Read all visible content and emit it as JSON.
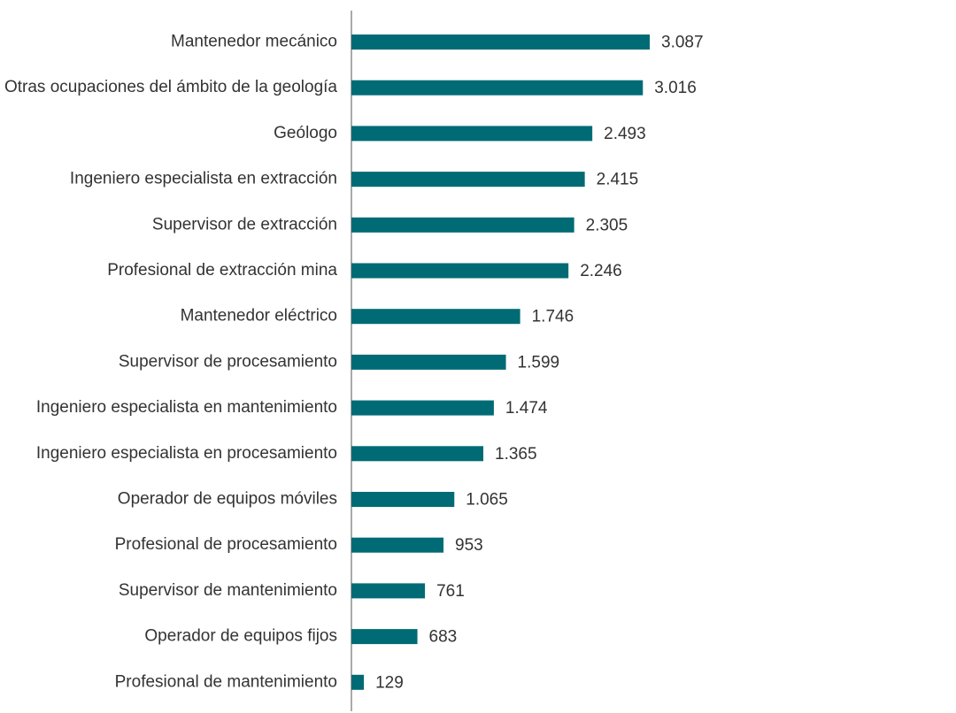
{
  "chart_data": {
    "type": "bar",
    "orientation": "horizontal",
    "categories": [
      "Mantenedor mecánico",
      "Otras ocupaciones del ámbito de la geología",
      "Geólogo",
      "Ingeniero especialista en extracción",
      "Supervisor de extracción",
      "Profesional de extracción mina",
      "Mantenedor eléctrico",
      "Supervisor de procesamiento",
      "Ingeniero especialista en mantenimiento",
      "Ingeniero especialista en procesamiento",
      "Operador de equipos móviles",
      "Profesional de procesamiento",
      "Supervisor de mantenimiento",
      "Operador de equipos fijos",
      "Profesional de mantenimiento"
    ],
    "values": [
      3087,
      3016,
      2493,
      2415,
      2305,
      2246,
      1746,
      1599,
      1474,
      1365,
      1065,
      953,
      761,
      683,
      129
    ],
    "value_labels": [
      "3.087",
      "3.016",
      "2.493",
      "2.415",
      "2.305",
      "2.246",
      "1.746",
      "1.599",
      "1.474",
      "1.365",
      "1.065",
      "953",
      "761",
      "683",
      "129"
    ],
    "title": "",
    "xlabel": "",
    "ylabel": "",
    "xlim": [
      0,
      3200
    ],
    "grid": false,
    "legend": "none",
    "bar_color": "#006b75",
    "axis_color": "#555555"
  }
}
